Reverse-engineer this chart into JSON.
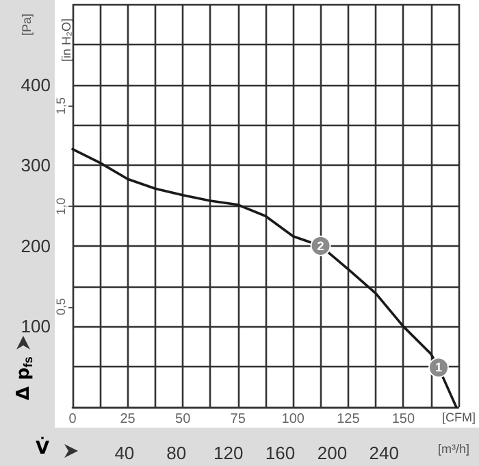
{
  "chart_data": {
    "type": "line",
    "xlabel": "[CFM]",
    "x2label": "[m³/h]",
    "ylabel": "[Pa]",
    "y2label": "[in H₂O]",
    "x": [
      0,
      12.5,
      25,
      37.5,
      50,
      62.5,
      75,
      87.5,
      100,
      112.5,
      125,
      137.5,
      150,
      162.5,
      166,
      174
    ],
    "series": [
      {
        "color": "#1a1a1a",
        "values": [
          320,
          303,
          283,
          271,
          263,
          256,
          251,
          237,
          212,
          200,
          171,
          141,
          100,
          66,
          49,
          0
        ]
      }
    ],
    "xlim": [
      0,
      175
    ],
    "xticks": [
      0,
      {
        "value": 12.5,
        "label": null
      },
      25,
      {
        "value": 37.5,
        "label": null
      },
      50,
      {
        "value": 62.5,
        "label": null
      },
      75,
      {
        "value": 87.5,
        "label": null
      },
      100,
      {
        "value": 112.5,
        "label": null
      },
      125,
      {
        "value": 137.5,
        "label": null
      },
      150,
      {
        "value": 162.5,
        "label": null
      },
      {
        "value": 175,
        "label": null
      }
    ],
    "x2lim": [
      0,
      297.3
    ],
    "x2ticks": [
      40,
      80,
      120,
      160,
      200,
      240
    ],
    "ylim": [
      0,
      500
    ],
    "yticks": [
      {
        "value": 0,
        "label": null
      },
      {
        "value": 50,
        "label": null
      },
      100,
      {
        "value": 150,
        "label": null
      },
      200,
      {
        "value": 250,
        "label": null
      },
      300,
      {
        "value": 350,
        "label": null
      },
      400,
      {
        "value": 450,
        "label": null
      },
      {
        "value": 500,
        "label": null
      }
    ],
    "y2lim": [
      0,
      2.007
    ],
    "y2ticks": [
      {
        "value": 0.5,
        "label": "0,5"
      },
      {
        "value": 1,
        "label": "1,0"
      },
      {
        "value": 1.5,
        "label": "1,5"
      }
    ],
    "grid": true,
    "marker": "none",
    "line_style": "solid",
    "annotations": [
      "Δ p$_{fs}$",
      "V̇",
      {
        "text": "2",
        "x": 112.5,
        "y": 200
      },
      {
        "text": "1",
        "x": 166,
        "y": 49
      }
    ]
  }
}
